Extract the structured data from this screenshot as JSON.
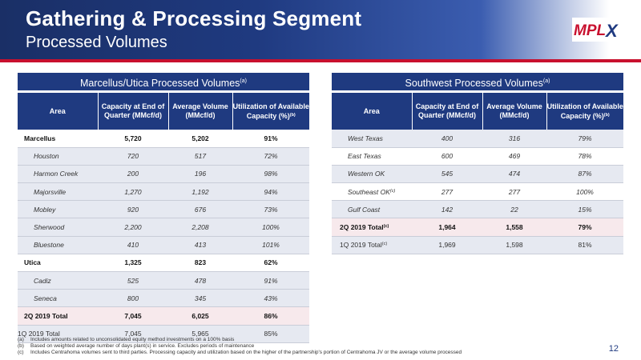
{
  "header": {
    "title": "Gathering & Processing Segment",
    "subtitle": "Processed Volumes",
    "logo_text": "MPLX",
    "colors": {
      "navy": "#1f3a80",
      "accent_red": "#c8102e"
    }
  },
  "marcellus_utica": {
    "title": "Marcellus/Utica Processed Volumes",
    "title_note": "(a)",
    "columns": [
      "Area",
      "Capacity at End of Quarter (MMcf/d)",
      "Average Volume (MMcf/d)",
      "Utilization of Available Capacity (%)"
    ],
    "column_note": "(b)",
    "rows": [
      {
        "area": "Marcellus",
        "capacity": "5,720",
        "volume": "5,202",
        "utilization": "91%",
        "style": "bold"
      },
      {
        "area": "Houston",
        "capacity": "720",
        "volume": "517",
        "utilization": "72%",
        "style": "sub"
      },
      {
        "area": "Harmon Creek",
        "capacity": "200",
        "volume": "196",
        "utilization": "98%",
        "style": "sub"
      },
      {
        "area": "Majorsville",
        "capacity": "1,270",
        "volume": "1,192",
        "utilization": "94%",
        "style": "sub"
      },
      {
        "area": "Mobley",
        "capacity": "920",
        "volume": "676",
        "utilization": "73%",
        "style": "sub"
      },
      {
        "area": "Sherwood",
        "capacity": "2,200",
        "volume": "2,208",
        "utilization": "100%",
        "style": "sub"
      },
      {
        "area": "Bluestone",
        "capacity": "410",
        "volume": "413",
        "utilization": "101%",
        "style": "sub"
      },
      {
        "area": "Utica",
        "capacity": "1,325",
        "volume": "823",
        "utilization": "62%",
        "style": "bold"
      },
      {
        "area": "Cadiz",
        "capacity": "525",
        "volume": "478",
        "utilization": "91%",
        "style": "sub"
      },
      {
        "area": "Seneca",
        "capacity": "800",
        "volume": "345",
        "utilization": "43%",
        "style": "sub"
      },
      {
        "area": "2Q 2019 Total",
        "capacity": "7,045",
        "volume": "6,025",
        "utilization": "86%",
        "style": "bold"
      },
      {
        "area": "1Q 2019 Total",
        "capacity": "7,045",
        "volume": "5,965",
        "utilization": "85%",
        "style": "prior"
      }
    ]
  },
  "southwest": {
    "title": "Southwest Processed Volumes",
    "title_note": "(a)",
    "columns": [
      "Area",
      "Capacity at End of Quarter (MMcf/d)",
      "Average Volume (MMcf/d)",
      "Utilization of Available Capacity (%)"
    ],
    "column_note": "(b)",
    "rows": [
      {
        "area": "West Texas",
        "note": "",
        "capacity": "400",
        "volume": "316",
        "utilization": "79%",
        "style": "sub"
      },
      {
        "area": "East Texas",
        "note": "",
        "capacity": "600",
        "volume": "469",
        "utilization": "78%",
        "style": "sub"
      },
      {
        "area": "Western OK",
        "note": "",
        "capacity": "545",
        "volume": "474",
        "utilization": "87%",
        "style": "sub"
      },
      {
        "area": "Southeast OK",
        "note": "(c)",
        "capacity": "277",
        "volume": "277",
        "utilization": "100%",
        "style": "sub"
      },
      {
        "area": "Gulf Coast",
        "note": "",
        "capacity": "142",
        "volume": "22",
        "utilization": "15%",
        "style": "sub"
      },
      {
        "area": "2Q 2019 Total",
        "note": "(c)",
        "capacity": "1,964",
        "volume": "1,558",
        "utilization": "79%",
        "style": "total"
      },
      {
        "area": "1Q 2019 Total",
        "note": "(c)",
        "capacity": "1,969",
        "volume": "1,598",
        "utilization": "81%",
        "style": "prior"
      }
    ]
  },
  "footnotes": [
    {
      "mark": "(a)",
      "text": "Includes amounts related to unconsolidated equity method investments on a 100% basis"
    },
    {
      "mark": "(b)",
      "text": "Based on weighted average number of days plant(s) in service. Excludes periods of maintenance"
    },
    {
      "mark": "(c)",
      "text": "Includes Centrahoma volumes sent to third parties. Processing capacity and utilization based on the higher of the partnership's portion of Centrahoma JV or the average volume processed"
    }
  ],
  "page_number": "12"
}
